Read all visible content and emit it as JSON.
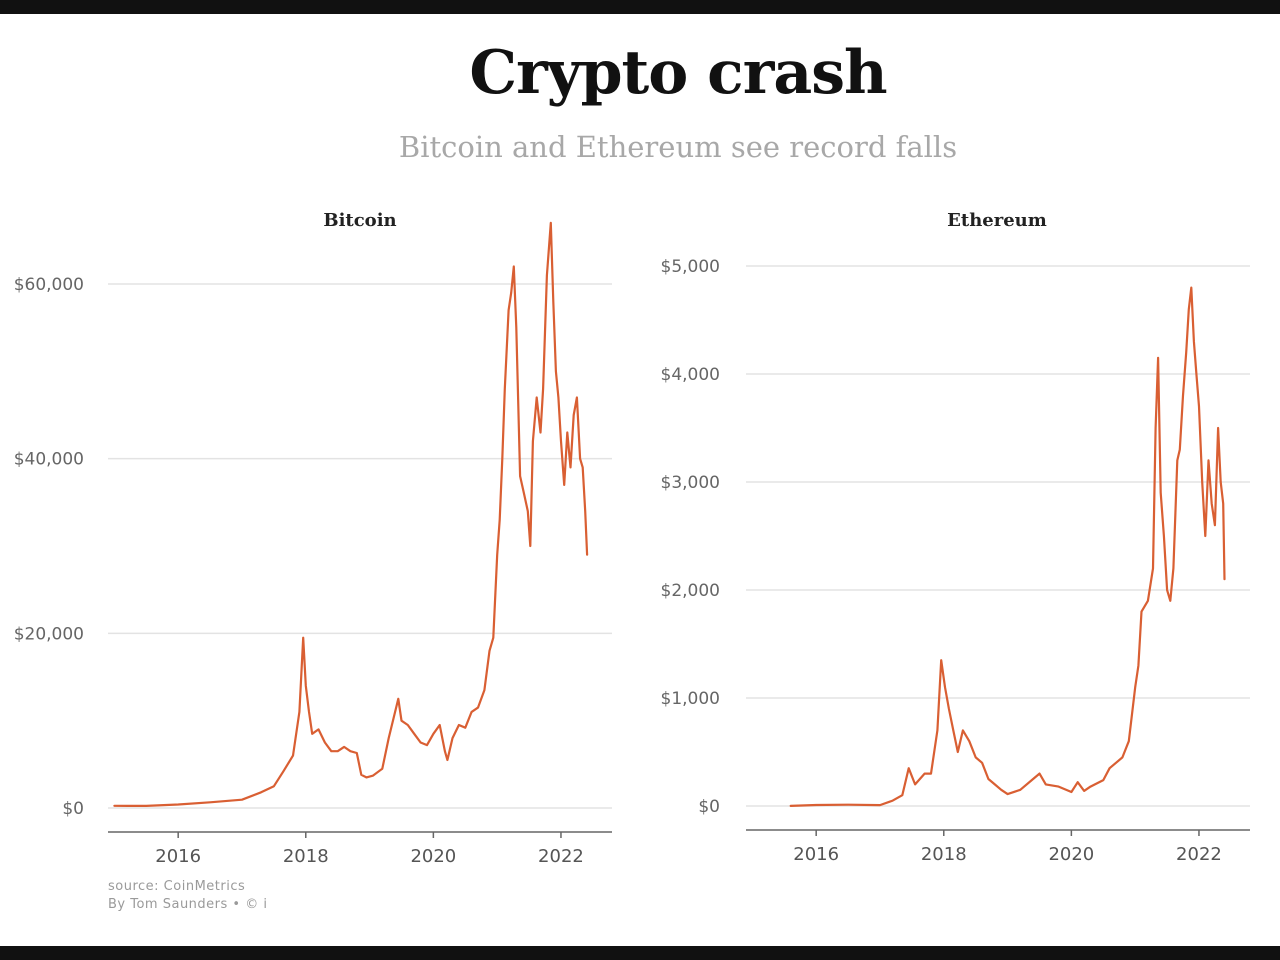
{
  "header": {
    "title": "Crypto crash",
    "subtitle": "Bitcoin and Ethereum see record falls"
  },
  "footer": {
    "source": "source: CoinMetrics",
    "byline": "By Tom Saunders  • © i"
  },
  "colors": {
    "series": "#d95f33",
    "grid": "#e3e3e3"
  },
  "chart_data": [
    {
      "type": "line",
      "title": "Bitcoin",
      "xlabel": "",
      "ylabel": "",
      "xlim": [
        2014.9,
        2022.8
      ],
      "ylim": [
        0,
        68000
      ],
      "yticks": [
        0,
        20000,
        40000,
        60000
      ],
      "ytick_labels": [
        "$0",
        "$20,000",
        "$40,000",
        "$60,000"
      ],
      "xticks": [
        2016,
        2018,
        2020,
        2022
      ],
      "xtick_labels": [
        "2016",
        "2018",
        "2020",
        "2022"
      ],
      "grid": true,
      "series": [
        {
          "name": "Bitcoin",
          "x": [
            2015.0,
            2015.5,
            2016.0,
            2016.5,
            2017.0,
            2017.3,
            2017.5,
            2017.65,
            2017.8,
            2017.9,
            2017.96,
            2018.0,
            2018.05,
            2018.1,
            2018.2,
            2018.3,
            2018.4,
            2018.5,
            2018.6,
            2018.7,
            2018.8,
            2018.87,
            2018.95,
            2019.05,
            2019.2,
            2019.3,
            2019.45,
            2019.5,
            2019.6,
            2019.7,
            2019.8,
            2019.9,
            2020.0,
            2020.1,
            2020.18,
            2020.22,
            2020.3,
            2020.4,
            2020.5,
            2020.6,
            2020.7,
            2020.8,
            2020.88,
            2020.94,
            2021.0,
            2021.04,
            2021.08,
            2021.12,
            2021.18,
            2021.22,
            2021.26,
            2021.3,
            2021.36,
            2021.42,
            2021.48,
            2021.52,
            2021.56,
            2021.62,
            2021.68,
            2021.72,
            2021.78,
            2021.84,
            2021.88,
            2021.92,
            2021.96,
            2022.0,
            2022.05,
            2022.1,
            2022.15,
            2022.2,
            2022.25,
            2022.3,
            2022.34,
            2022.38,
            2022.41
          ],
          "y": [
            250,
            240,
            400,
            650,
            950,
            1800,
            2500,
            4200,
            6000,
            11000,
            19500,
            14000,
            11000,
            8500,
            9000,
            7500,
            6500,
            6500,
            7000,
            6500,
            6300,
            3800,
            3500,
            3700,
            4500,
            8000,
            12500,
            10000,
            9500,
            8500,
            7500,
            7200,
            8500,
            9500,
            6500,
            5500,
            8000,
            9500,
            9200,
            11000,
            11500,
            13500,
            18000,
            19500,
            29000,
            33000,
            40000,
            48000,
            57000,
            59000,
            62000,
            55000,
            38000,
            36000,
            34000,
            30000,
            42000,
            47000,
            43000,
            48000,
            61000,
            67000,
            58000,
            50000,
            47000,
            42000,
            37000,
            43000,
            39000,
            45000,
            47000,
            40000,
            39000,
            34000,
            29000
          ]
        }
      ]
    },
    {
      "type": "line",
      "title": "Ethereum",
      "xlabel": "",
      "ylabel": "",
      "xlim": [
        2014.9,
        2022.8
      ],
      "ylim": [
        0,
        5000
      ],
      "yticks": [
        0,
        1000,
        2000,
        3000,
        4000,
        5000
      ],
      "ytick_labels": [
        "$0",
        "$1,000",
        "$2,000",
        "$3,000",
        "$4,000",
        "$5,000"
      ],
      "xticks": [
        2016,
        2018,
        2020,
        2022
      ],
      "xtick_labels": [
        "2016",
        "2018",
        "2020",
        "2022"
      ],
      "grid": true,
      "series": [
        {
          "name": "Ethereum",
          "x": [
            2015.6,
            2016.0,
            2016.5,
            2017.0,
            2017.2,
            2017.35,
            2017.45,
            2017.55,
            2017.7,
            2017.8,
            2017.9,
            2017.96,
            2018.02,
            2018.08,
            2018.15,
            2018.22,
            2018.3,
            2018.4,
            2018.5,
            2018.6,
            2018.7,
            2018.8,
            2018.9,
            2019.0,
            2019.2,
            2019.4,
            2019.5,
            2019.6,
            2019.8,
            2020.0,
            2020.1,
            2020.2,
            2020.3,
            2020.5,
            2020.6,
            2020.7,
            2020.8,
            2020.9,
            2021.0,
            2021.05,
            2021.1,
            2021.2,
            2021.28,
            2021.32,
            2021.36,
            2021.4,
            2021.45,
            2021.5,
            2021.55,
            2021.6,
            2021.66,
            2021.7,
            2021.75,
            2021.8,
            2021.84,
            2021.88,
            2021.92,
            2021.96,
            2022.0,
            2022.05,
            2022.1,
            2022.15,
            2022.2,
            2022.25,
            2022.3,
            2022.34,
            2022.38,
            2022.4
          ],
          "y": [
            1,
            9,
            12,
            8,
            50,
            100,
            350,
            200,
            300,
            300,
            700,
            1350,
            1100,
            900,
            700,
            500,
            700,
            600,
            450,
            400,
            250,
            200,
            150,
            110,
            150,
            250,
            300,
            200,
            180,
            130,
            220,
            140,
            180,
            240,
            350,
            400,
            450,
            600,
            1100,
            1300,
            1800,
            1900,
            2200,
            3500,
            4150,
            2900,
            2500,
            2000,
            1900,
            2200,
            3200,
            3300,
            3800,
            4200,
            4600,
            4800,
            4300,
            4000,
            3700,
            3000,
            2500,
            3200,
            2800,
            2600,
            3500,
            3000,
            2800,
            2100
          ]
        }
      ]
    }
  ]
}
